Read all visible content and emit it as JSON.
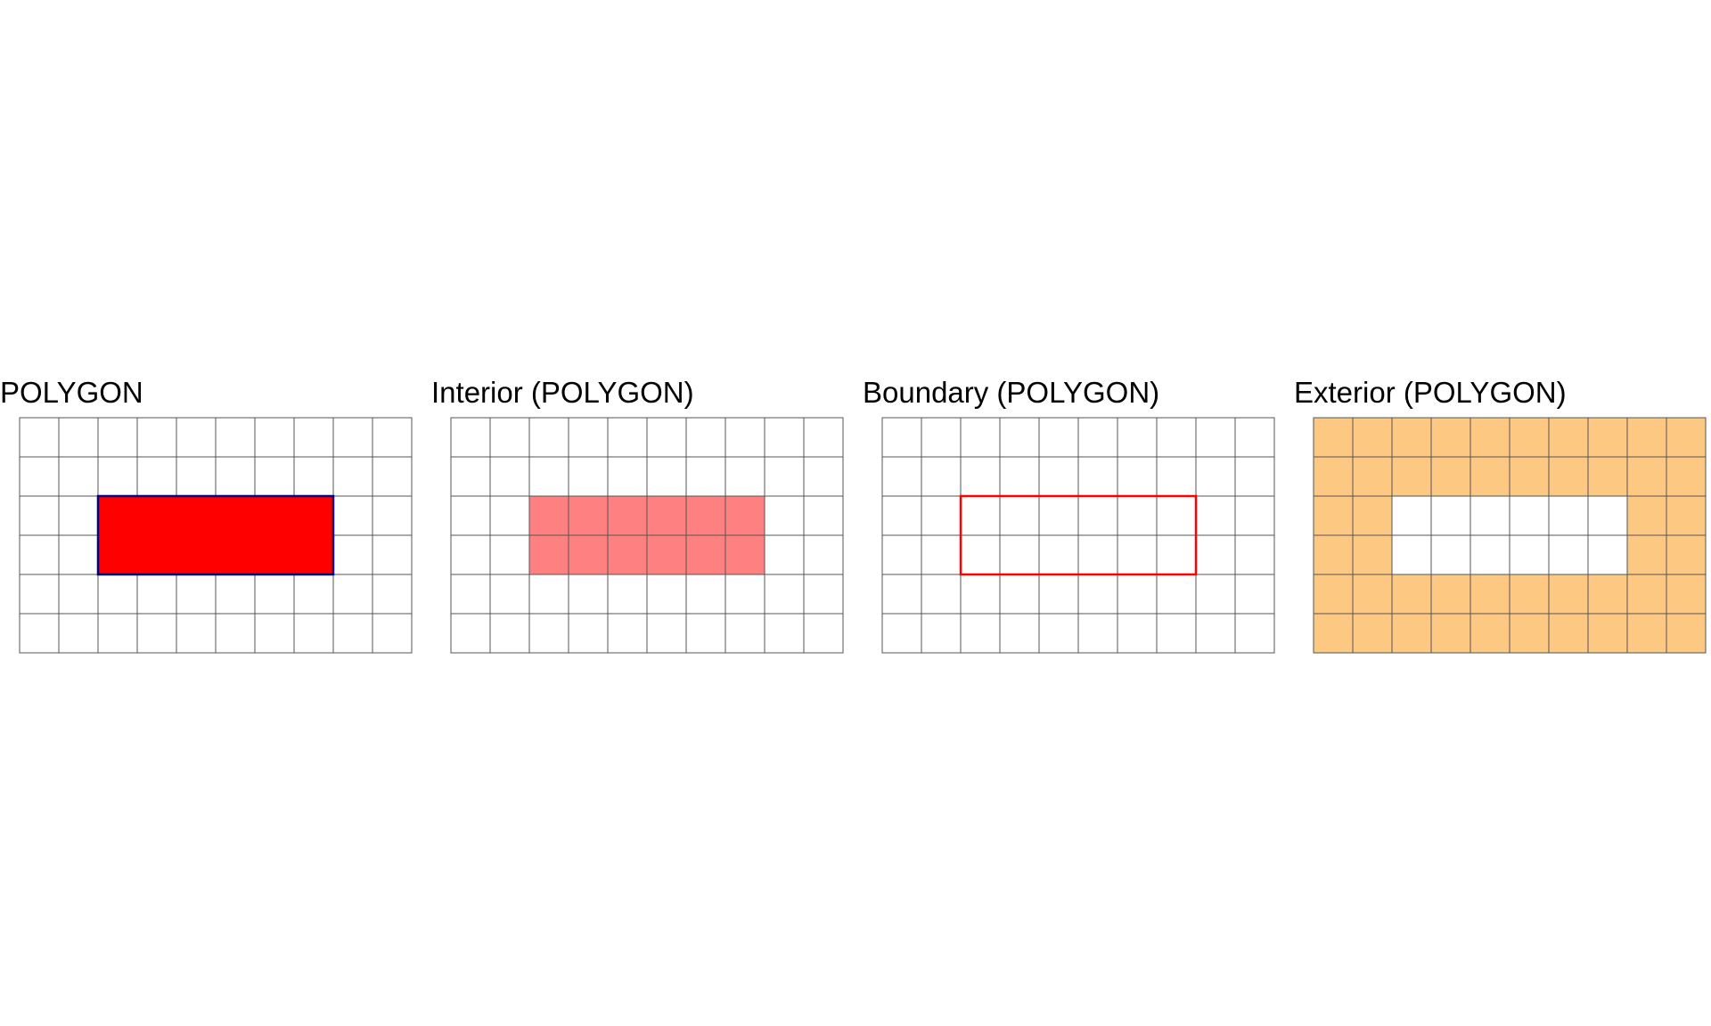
{
  "colors": {
    "grid_line": "#555555",
    "cell_bg": "#ffffff",
    "polygon_fill": "#ff0000",
    "polygon_outline": "#000080",
    "interior_fill": "#ff8080",
    "boundary_stroke": "#ff0000",
    "exterior_fill": "#fcc882"
  },
  "grid": {
    "cols": 10,
    "rows": 6,
    "polygon": {
      "col_start": 2,
      "col_end": 8,
      "row_start": 2,
      "row_end": 4
    }
  },
  "panels": [
    {
      "title": "POLYGON",
      "mode": "polygon"
    },
    {
      "title": "Interior (POLYGON)",
      "mode": "interior"
    },
    {
      "title": "Boundary (POLYGON)",
      "mode": "boundary"
    },
    {
      "title": "Exterior (POLYGON)",
      "mode": "exterior"
    }
  ]
}
